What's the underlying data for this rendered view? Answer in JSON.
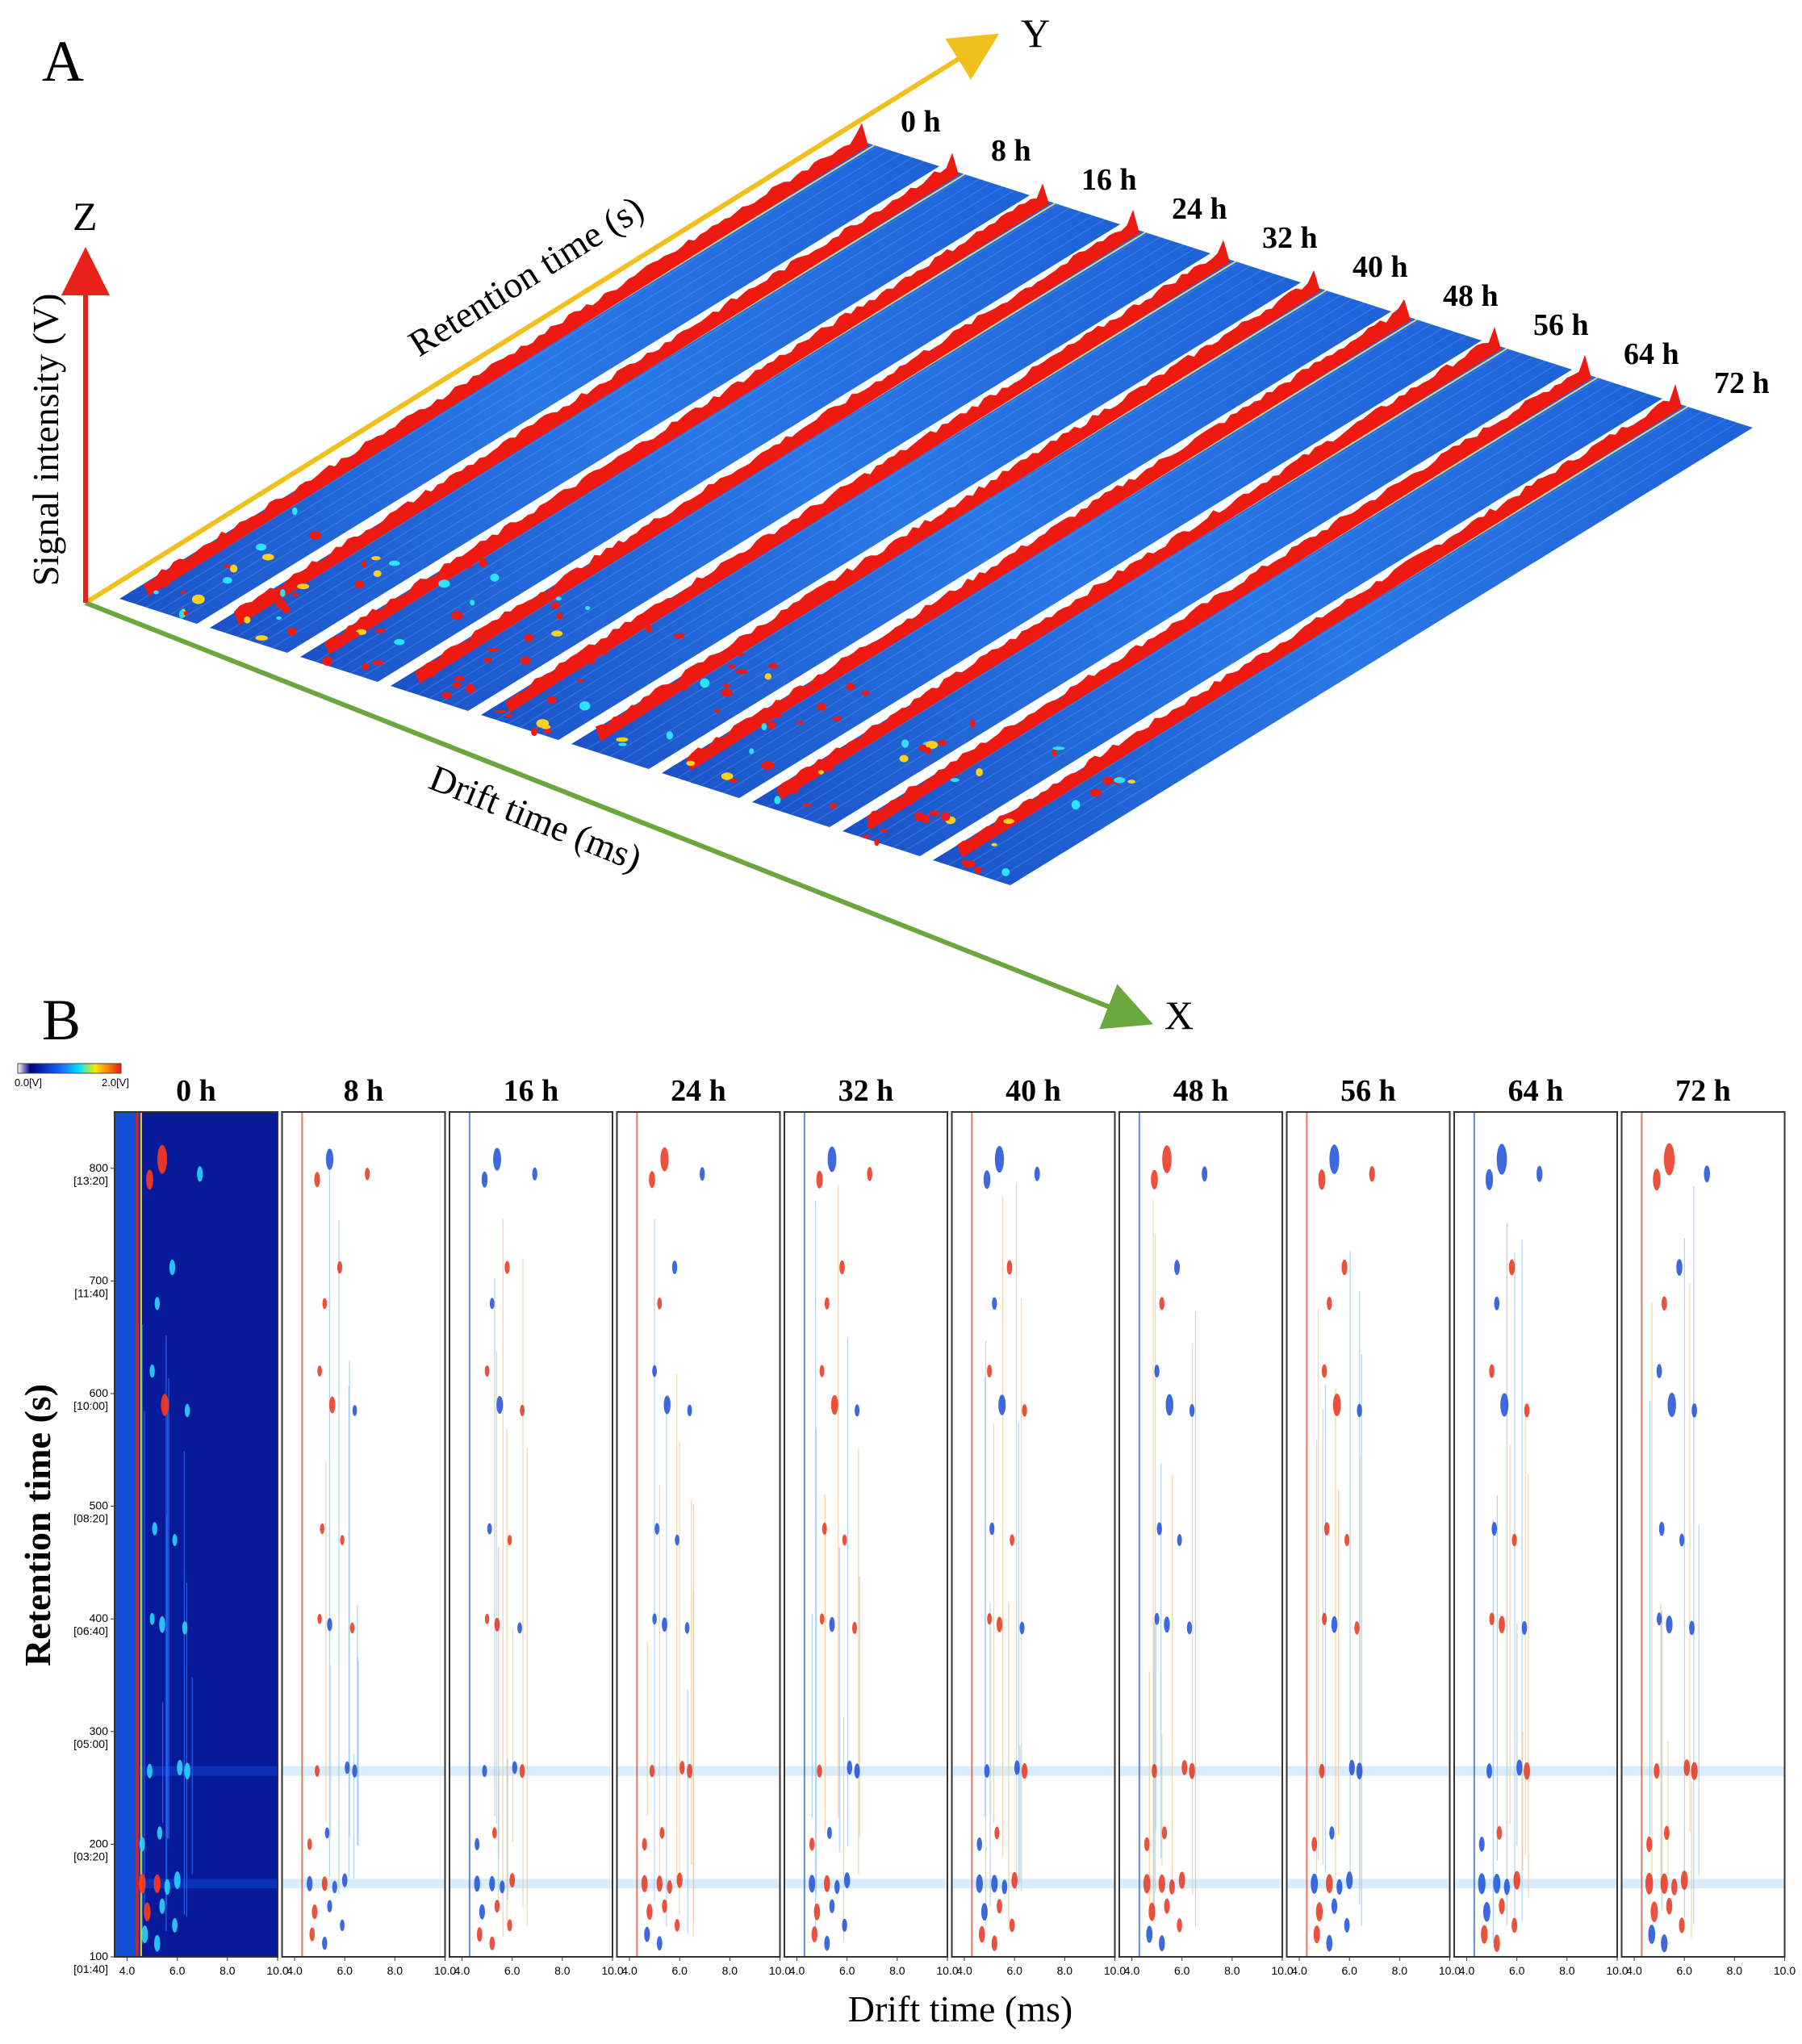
{
  "panels": {
    "a_label": "A",
    "b_label": "B"
  },
  "colors": {
    "axis_x": "#6aa83d",
    "axis_y": "#f2c01c",
    "axis_z": "#e8211b",
    "background_blue": "#1f62d8",
    "peak_red": "#ee1a12",
    "dark_blue": "#061a9a"
  },
  "chart_data": [
    {
      "type": "heatmap",
      "subtype": "3d-topographic-stack",
      "title": "",
      "axes": {
        "x": {
          "letter": "X",
          "label": "Drift time (ms)"
        },
        "y": {
          "letter": "Y",
          "label": "Retention time (s)"
        },
        "z": {
          "letter": "Z",
          "label": "Signal intensity (V)"
        }
      },
      "samples": [
        "0 h",
        "8 h",
        "16 h",
        "24 h",
        "32 h",
        "40 h",
        "48 h",
        "56 h",
        "64 h",
        "72 h"
      ]
    },
    {
      "type": "heatmap",
      "subtype": "2d-topographic-difference",
      "xlabel": "Drift time (ms)",
      "ylabel": "Retention time (s)",
      "colorbar": {
        "min_label": "0.0[V]",
        "max_label": "2.0[V]"
      },
      "samples": [
        "0 h",
        "8 h",
        "16 h",
        "24 h",
        "32 h",
        "40 h",
        "48 h",
        "56 h",
        "64 h",
        "72 h"
      ],
      "xlim": [
        3.5,
        10.0
      ],
      "ylim": [
        100,
        850
      ],
      "x_ticks": [
        {
          "value": 4.0,
          "label": "4.0"
        },
        {
          "value": 6.0,
          "label": "6.0"
        },
        {
          "value": 8.0,
          "label": "8.0"
        },
        {
          "value": 10.0,
          "label": "10.0"
        }
      ],
      "y_ticks": [
        {
          "value": 100,
          "label": "100",
          "sublabel": "[01:40]"
        },
        {
          "value": 200,
          "label": "200",
          "sublabel": "[03:20]"
        },
        {
          "value": 300,
          "label": "300",
          "sublabel": "[05:00]"
        },
        {
          "value": 400,
          "label": "400",
          "sublabel": "[06:40]"
        },
        {
          "value": 500,
          "label": "500",
          "sublabel": "[08:20]"
        },
        {
          "value": 600,
          "label": "600",
          "sublabel": "[10:00]"
        },
        {
          "value": 700,
          "label": "700",
          "sublabel": "[11:40]"
        },
        {
          "value": 800,
          "label": "800",
          "sublabel": "[13:20]"
        }
      ],
      "rip_drift_time": 4.3,
      "bands_retention": [
        165,
        265
      ],
      "peaks": [
        {
          "dt": 5.4,
          "rt": 808,
          "color": "blue",
          "size": 1.0
        },
        {
          "dt": 4.9,
          "rt": 790,
          "color": "red",
          "size": 0.6
        },
        {
          "dt": 6.9,
          "rt": 795,
          "color": "blue",
          "size": 0.4
        },
        {
          "dt": 5.8,
          "rt": 712,
          "color": "red",
          "size": 0.4
        },
        {
          "dt": 5.2,
          "rt": 680,
          "color": "red",
          "size": 0.3
        },
        {
          "dt": 5.5,
          "rt": 590,
          "color": "blue",
          "size": 0.7
        },
        {
          "dt": 5.0,
          "rt": 620,
          "color": "red",
          "size": 0.3
        },
        {
          "dt": 6.4,
          "rt": 585,
          "color": "blue",
          "size": 0.3
        },
        {
          "dt": 5.1,
          "rt": 480,
          "color": "blue",
          "size": 0.3
        },
        {
          "dt": 5.9,
          "rt": 470,
          "color": "red",
          "size": 0.25
        },
        {
          "dt": 5.4,
          "rt": 395,
          "color": "blue",
          "size": 0.45
        },
        {
          "dt": 6.3,
          "rt": 392,
          "color": "blue",
          "size": 0.3
        },
        {
          "dt": 5.0,
          "rt": 400,
          "color": "red",
          "size": 0.25
        },
        {
          "dt": 4.9,
          "rt": 265,
          "color": "red",
          "size": 0.35
        },
        {
          "dt": 6.4,
          "rt": 265,
          "color": "red",
          "size": 0.45
        },
        {
          "dt": 6.1,
          "rt": 268,
          "color": "blue",
          "size": 0.4
        },
        {
          "dt": 4.6,
          "rt": 200,
          "color": "red",
          "size": 0.35
        },
        {
          "dt": 5.3,
          "rt": 210,
          "color": "red",
          "size": 0.3
        },
        {
          "dt": 4.6,
          "rt": 165,
          "color": "blue",
          "size": 0.6
        },
        {
          "dt": 5.2,
          "rt": 165,
          "color": "red",
          "size": 0.55
        },
        {
          "dt": 6.0,
          "rt": 168,
          "color": "red",
          "size": 0.5
        },
        {
          "dt": 5.6,
          "rt": 162,
          "color": "blue",
          "size": 0.4
        },
        {
          "dt": 4.8,
          "rt": 140,
          "color": "red",
          "size": 0.55
        },
        {
          "dt": 5.4,
          "rt": 145,
          "color": "red",
          "size": 0.4
        },
        {
          "dt": 4.7,
          "rt": 120,
          "color": "red",
          "size": 0.5
        },
        {
          "dt": 5.2,
          "rt": 112,
          "color": "blue",
          "size": 0.45
        },
        {
          "dt": 5.9,
          "rt": 128,
          "color": "red",
          "size": 0.35
        }
      ]
    }
  ]
}
